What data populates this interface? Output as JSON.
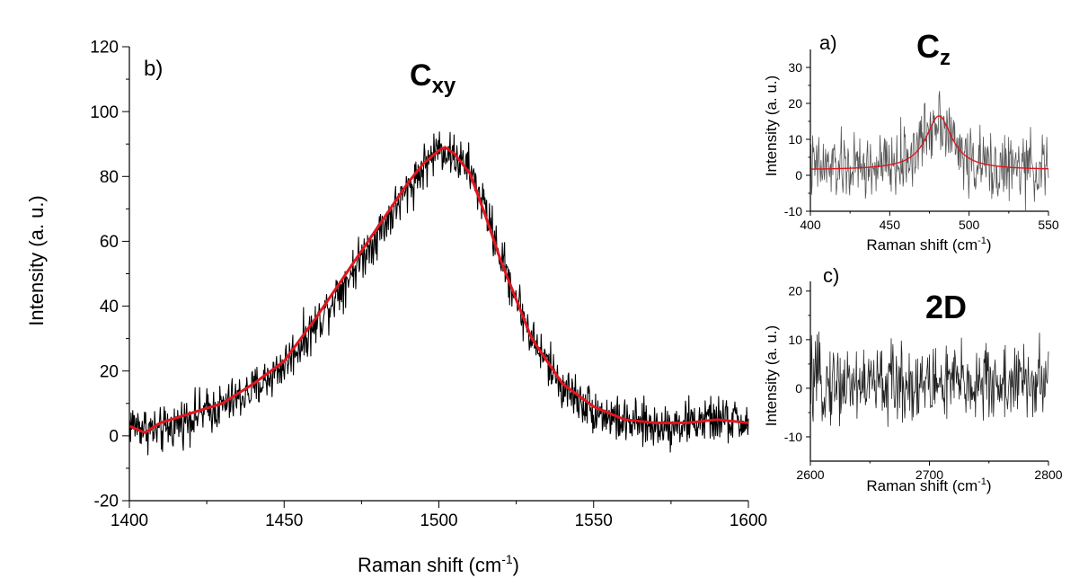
{
  "figure": {
    "background": "#ffffff"
  },
  "chart_data": [
    {
      "id": "b",
      "type": "line",
      "panel_label": "b)",
      "annotation": {
        "main": "C",
        "sub": "xy"
      },
      "xlabel": {
        "main": "Raman shift (cm",
        "sup": "-1",
        "tail": ")"
      },
      "ylabel": "Intensity (a. u.)",
      "xlim": [
        1400,
        1600
      ],
      "ylim": [
        -20,
        120
      ],
      "xticks": [
        1400,
        1450,
        1500,
        1550,
        1600
      ],
      "yticks": [
        -20,
        0,
        20,
        40,
        60,
        80,
        100,
        120
      ],
      "grid": false,
      "series": [
        {
          "role": "raw",
          "color": "#000000",
          "x": [
            1400,
            1410,
            1420,
            1430,
            1440,
            1450,
            1460,
            1470,
            1480,
            1490,
            1495,
            1500,
            1502,
            1505,
            1510,
            1515,
            1520,
            1530,
            1540,
            1550,
            1560,
            1570,
            1580,
            1590,
            1600
          ],
          "y": [
            4,
            1,
            6,
            9,
            14,
            22,
            34,
            48,
            62,
            76,
            83,
            89,
            88,
            86,
            82,
            70,
            55,
            30,
            15,
            8,
            4,
            3,
            4,
            5,
            4
          ],
          "noise_amplitude": 6
        },
        {
          "role": "smoothed",
          "color": "#e0161f",
          "x": [
            1400,
            1405,
            1410,
            1420,
            1430,
            1440,
            1450,
            1460,
            1470,
            1480,
            1490,
            1495,
            1500,
            1502,
            1505,
            1510,
            1515,
            1520,
            1530,
            1540,
            1550,
            1560,
            1570,
            1580,
            1590,
            1600
          ],
          "y": [
            3,
            1,
            4,
            7,
            10,
            16,
            23,
            36,
            50,
            64,
            78,
            84,
            88,
            89,
            87,
            81,
            68,
            54,
            30,
            16,
            9,
            5,
            4,
            4,
            5,
            4
          ]
        }
      ]
    },
    {
      "id": "a",
      "type": "line",
      "panel_label": "a)",
      "annotation": {
        "main": "C",
        "sub": "z"
      },
      "xlabel": {
        "main": "Raman shift (cm",
        "sup": "-1",
        "tail": ")"
      },
      "ylabel": "Intensity (a. u.)",
      "xlim": [
        400,
        550
      ],
      "ylim": [
        -10,
        35
      ],
      "xticks": [
        400,
        450,
        500,
        550
      ],
      "yticks": [
        -10,
        0,
        10,
        20,
        30
      ],
      "grid": false,
      "series": [
        {
          "role": "raw",
          "color": "#555555",
          "x": [
            400,
            420,
            440,
            455,
            465,
            472,
            478,
            481,
            485,
            490,
            500,
            515,
            530,
            550
          ],
          "y": [
            2,
            2,
            2,
            3,
            6,
            11,
            15,
            17,
            14,
            9,
            4,
            2,
            2,
            2
          ],
          "noise_amplitude": 8
        },
        {
          "role": "fit",
          "color": "#e0161f",
          "lorentz": {
            "center": 481,
            "amplitude": 15,
            "hwhm": 10,
            "baseline": 1.5
          }
        }
      ]
    },
    {
      "id": "c",
      "type": "line",
      "panel_label": "c)",
      "annotation": {
        "main": "2D",
        "sub": ""
      },
      "xlabel": {
        "main": "Raman shift (cm",
        "sup": "-1",
        "tail": ")"
      },
      "ylabel": "Intensity (a. u.)",
      "xlim": [
        2600,
        2800
      ],
      "ylim": [
        -15,
        22
      ],
      "xticks": [
        2600,
        2700,
        2800
      ],
      "yticks": [
        -10,
        0,
        10,
        20
      ],
      "grid": false,
      "series": [
        {
          "role": "raw",
          "color": "#222222",
          "x": [
            2600,
            2800
          ],
          "y": [
            1,
            1
          ],
          "noise_amplitude": 7
        }
      ]
    }
  ]
}
